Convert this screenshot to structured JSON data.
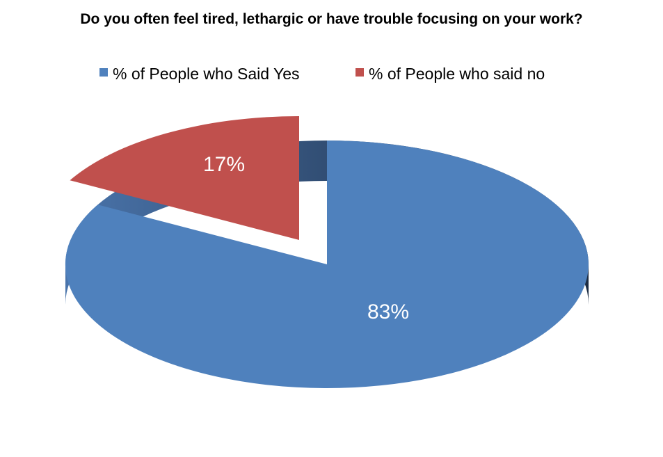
{
  "chart_data": {
    "type": "pie",
    "title": "Do you often feel tired, lethargic or have trouble focusing on your work?",
    "categories": [
      "% of People who Said Yes",
      "% of People who said no"
    ],
    "values": [
      83,
      17
    ],
    "data_labels": [
      "83%",
      "17%"
    ],
    "colors": [
      "#4F81BD",
      "#C0504D"
    ],
    "legend_position": "top",
    "three_d": true,
    "exploded": true
  }
}
